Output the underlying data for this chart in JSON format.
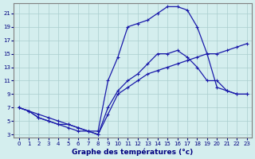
{
  "xlabel": "Graphe des températures (°c)",
  "ylabel": "",
  "background_color": "#d4eeee",
  "line_color": "#1a1aaa",
  "grid_color": "#aacece",
  "xlim": [
    -0.5,
    23.5
  ],
  "ylim": [
    2.5,
    22.5
  ],
  "xticks": [
    0,
    1,
    2,
    3,
    4,
    5,
    6,
    7,
    8,
    9,
    10,
    11,
    12,
    13,
    14,
    15,
    16,
    17,
    18,
    19,
    20,
    21,
    22,
    23
  ],
  "yticks": [
    3,
    5,
    7,
    9,
    11,
    13,
    15,
    17,
    19,
    21
  ],
  "line1_x": [
    0,
    1,
    2,
    3,
    4,
    5,
    6,
    7,
    8,
    9,
    10,
    11,
    12,
    13,
    14,
    15,
    16,
    17,
    18,
    19,
    20,
    21,
    22,
    23
  ],
  "line1_y": [
    7,
    6.5,
    5.5,
    5,
    4.5,
    4.5,
    4,
    3.5,
    3.5,
    11,
    14.5,
    19,
    19.5,
    20,
    21,
    22,
    22,
    21.5,
    19,
    15,
    10,
    9.5,
    9,
    9
  ],
  "line2_x": [
    0,
    1,
    2,
    3,
    4,
    5,
    6,
    7,
    8,
    9,
    10,
    11,
    12,
    13,
    14,
    15,
    16,
    17,
    18,
    19,
    20,
    21,
    22,
    23
  ],
  "line2_y": [
    7,
    6.5,
    5.5,
    5,
    4.5,
    4,
    3.5,
    3.5,
    3,
    6,
    9,
    10,
    11,
    12,
    12.5,
    13,
    13.5,
    14,
    14.5,
    15,
    15,
    15.5,
    16,
    16.5
  ],
  "line3_x": [
    0,
    2,
    3,
    4,
    5,
    6,
    7,
    8,
    9,
    10,
    11,
    12,
    13,
    14,
    15,
    16,
    17,
    18,
    19,
    20,
    21,
    22,
    23
  ],
  "line3_y": [
    7,
    6,
    5.5,
    5,
    4.5,
    4,
    3.5,
    3,
    7,
    9.5,
    11,
    12,
    13.5,
    15,
    15,
    15.5,
    14.5,
    13,
    11,
    11,
    9.5,
    9,
    9
  ],
  "marker": "+",
  "markersize": 3,
  "linewidth": 0.9,
  "tick_fontsize": 5,
  "label_fontsize": 6.5
}
